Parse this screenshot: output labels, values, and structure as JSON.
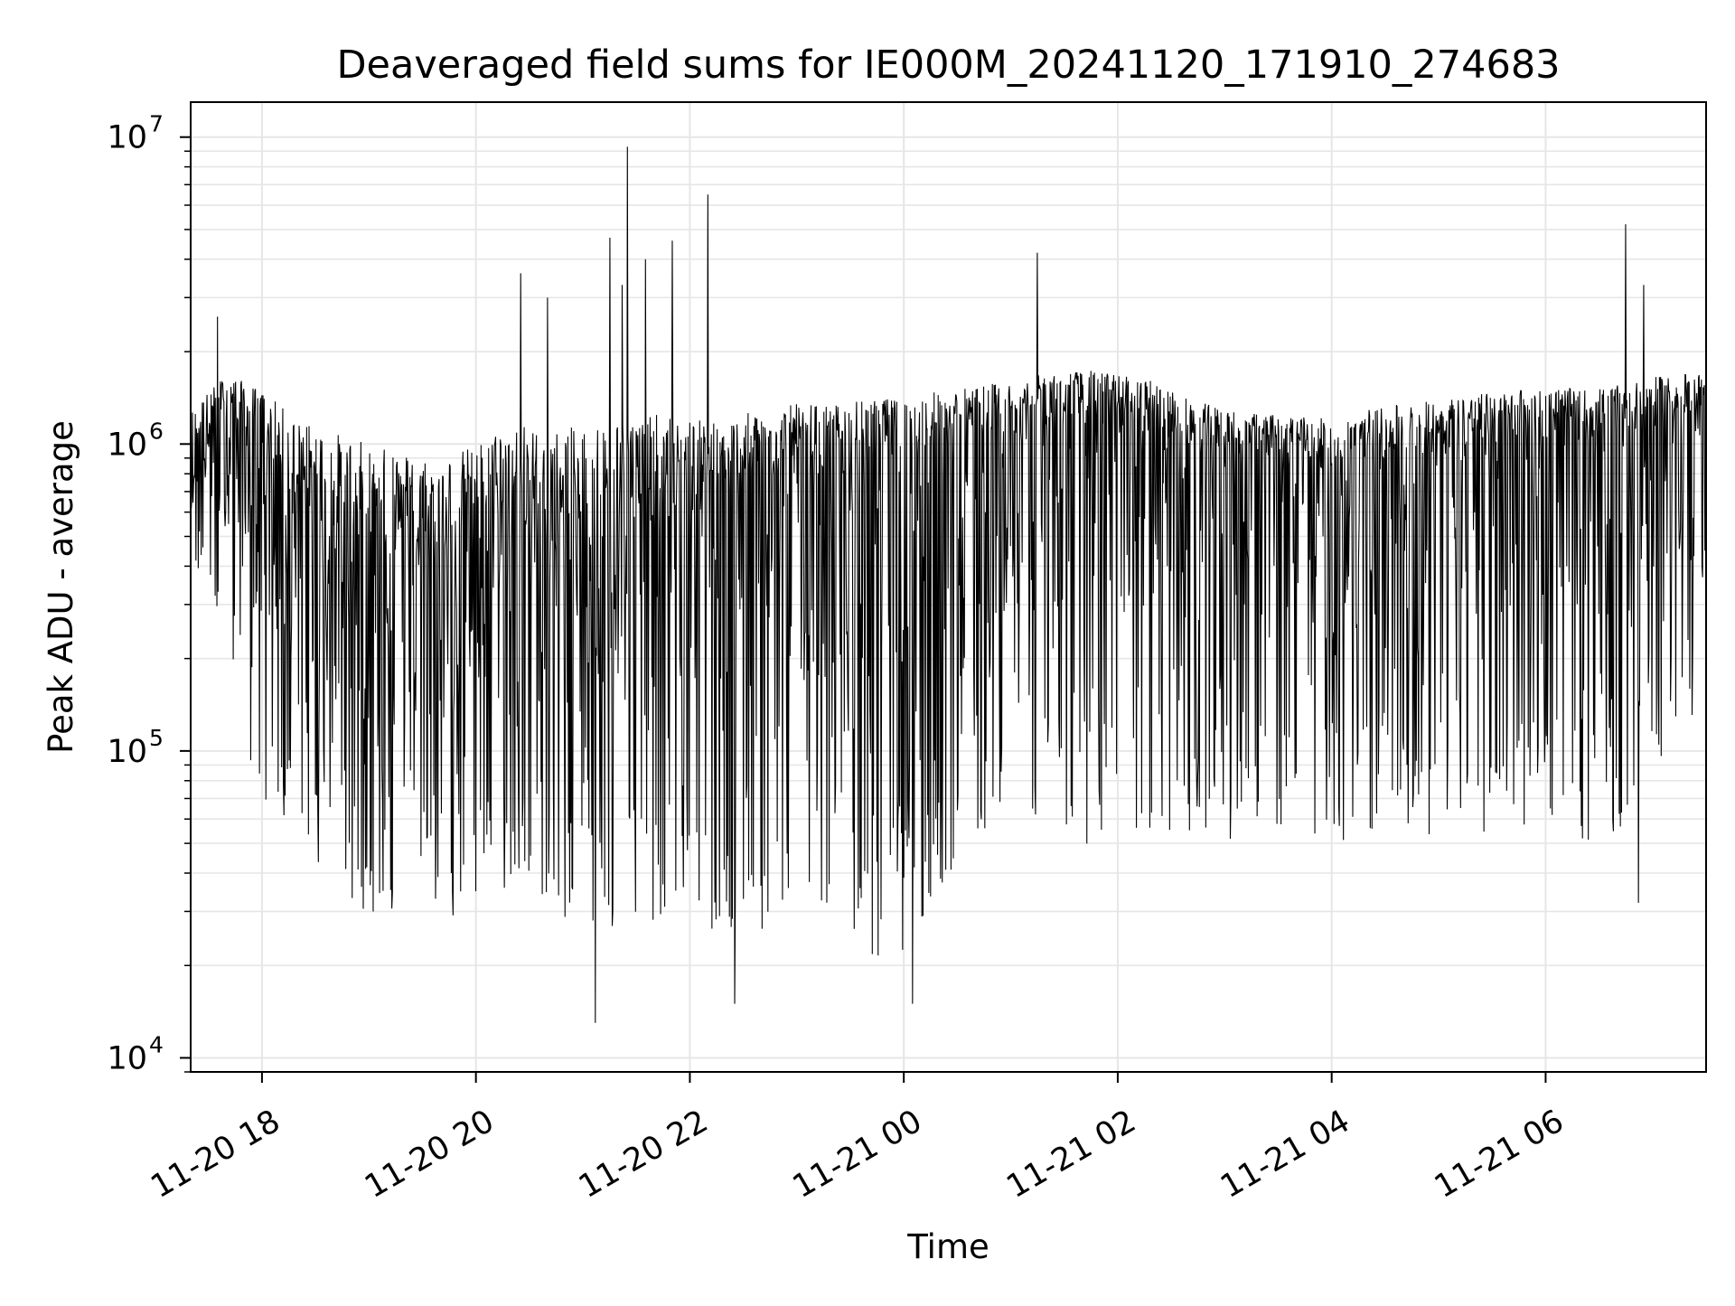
{
  "chart_data": {
    "type": "line",
    "title": "Deaveraged field sums for IE000M_20241120_171910_274683",
    "xlabel": "Time",
    "ylabel": "Peak ADU - average",
    "x_range": [
      "2024-11-20 17:20",
      "2024-11-21 07:30"
    ],
    "y_scale": "log",
    "ylim": [
      9000,
      13000000
    ],
    "grid": true,
    "line_color": "#000000",
    "x_ticks": [
      {
        "t": "2024-11-20 18:00",
        "label": "11-20 18"
      },
      {
        "t": "2024-11-20 20:00",
        "label": "11-20 20"
      },
      {
        "t": "2024-11-20 22:00",
        "label": "11-20 22"
      },
      {
        "t": "2024-11-21 00:00",
        "label": "11-21 00"
      },
      {
        "t": "2024-11-21 02:00",
        "label": "11-21 02"
      },
      {
        "t": "2024-11-21 04:00",
        "label": "11-21 04"
      },
      {
        "t": "2024-11-21 06:00",
        "label": "11-21 06"
      }
    ],
    "y_ticks": [
      {
        "v": 10000,
        "base": "10",
        "exp": "4"
      },
      {
        "v": 100000,
        "base": "10",
        "exp": "5"
      },
      {
        "v": 1000000,
        "base": "10",
        "exp": "6"
      },
      {
        "v": 10000000,
        "base": "10",
        "exp": "7"
      }
    ],
    "series": [
      {
        "x": [
          "2024-11-20 17:20",
          "2024-11-20 17:40",
          "2024-11-20 18:00",
          "2024-11-20 18:20",
          "2024-11-20 18:40",
          "2024-11-20 19:00",
          "2024-11-20 19:20",
          "2024-11-20 19:40",
          "2024-11-20 20:00",
          "2024-11-20 20:20",
          "2024-11-20 20:40",
          "2024-11-20 21:00",
          "2024-11-20 21:20",
          "2024-11-20 21:40",
          "2024-11-20 22:00",
          "2024-11-20 22:20",
          "2024-11-20 22:40",
          "2024-11-20 23:00",
          "2024-11-20 23:20",
          "2024-11-20 23:40",
          "2024-11-21 00:00",
          "2024-11-21 00:20",
          "2024-11-21 00:40",
          "2024-11-21 01:00",
          "2024-11-21 01:20",
          "2024-11-21 01:40",
          "2024-11-21 02:00",
          "2024-11-21 02:20",
          "2024-11-21 02:40",
          "2024-11-21 03:00",
          "2024-11-21 03:20",
          "2024-11-21 03:40",
          "2024-11-21 04:00",
          "2024-11-21 04:20",
          "2024-11-21 04:40",
          "2024-11-21 05:00",
          "2024-11-21 05:20",
          "2024-11-21 05:40",
          "2024-11-21 06:00",
          "2024-11-21 06:20",
          "2024-11-21 06:40",
          "2024-11-21 07:00",
          "2024-11-21 07:20"
        ],
        "typical": [
          800000,
          1200000,
          900000,
          600000,
          450000,
          400000,
          420000,
          380000,
          420000,
          500000,
          450000,
          480000,
          550000,
          600000,
          650000,
          600000,
          700000,
          720000,
          750000,
          800000,
          820000,
          880000,
          950000,
          1000000,
          1100000,
          1150000,
          1100000,
          1050000,
          950000,
          900000,
          880000,
          850000,
          820000,
          850000,
          880000,
          900000,
          950000,
          1000000,
          1050000,
          1000000,
          1050000,
          1100000,
          1150000
        ],
        "high": [
          1300000,
          1700000,
          1500000,
          1200000,
          1100000,
          1000000,
          950000,
          900000,
          1000000,
          1200000,
          1100000,
          1150000,
          1200000,
          1250000,
          1200000,
          1200000,
          1300000,
          1350000,
          1350000,
          1400000,
          1400000,
          1500000,
          1550000,
          1600000,
          1700000,
          1750000,
          1700000,
          1600000,
          1400000,
          1300000,
          1250000,
          1250000,
          1200000,
          1300000,
          1350000,
          1400000,
          1450000,
          1500000,
          1550000,
          1500000,
          1550000,
          1650000,
          1700000
        ],
        "low": [
          450000,
          200000,
          60000,
          45000,
          40000,
          28000,
          25000,
          27000,
          30000,
          35000,
          32000,
          25000,
          24000,
          28000,
          30000,
          22000,
          25000,
          28000,
          30000,
          22000,
          18000,
          35000,
          50000,
          60000,
          55000,
          50000,
          48000,
          52000,
          55000,
          50000,
          60000,
          50000,
          48000,
          50000,
          55000,
          52000,
          50000,
          55000,
          60000,
          50000,
          45000,
          60000,
          120000
        ],
        "spikes": [
          {
            "t": "2024-11-20 17:35",
            "v": 2600000
          },
          {
            "t": "2024-11-20 20:25",
            "v": 3600000
          },
          {
            "t": "2024-11-20 20:40",
            "v": 3000000
          },
          {
            "t": "2024-11-20 21:07",
            "v": 13000
          },
          {
            "t": "2024-11-20 21:15",
            "v": 4700000
          },
          {
            "t": "2024-11-20 21:22",
            "v": 3300000
          },
          {
            "t": "2024-11-20 21:25",
            "v": 9300000
          },
          {
            "t": "2024-11-20 21:35",
            "v": 4000000
          },
          {
            "t": "2024-11-20 21:50",
            "v": 4600000
          },
          {
            "t": "2024-11-20 22:10",
            "v": 6500000
          },
          {
            "t": "2024-11-20 22:25",
            "v": 15000
          },
          {
            "t": "2024-11-21 00:05",
            "v": 15000
          },
          {
            "t": "2024-11-21 01:15",
            "v": 4200000
          },
          {
            "t": "2024-11-21 06:45",
            "v": 5200000
          },
          {
            "t": "2024-11-21 06:55",
            "v": 3300000
          },
          {
            "t": "2024-11-21 06:52",
            "v": 32000
          }
        ]
      }
    ]
  }
}
